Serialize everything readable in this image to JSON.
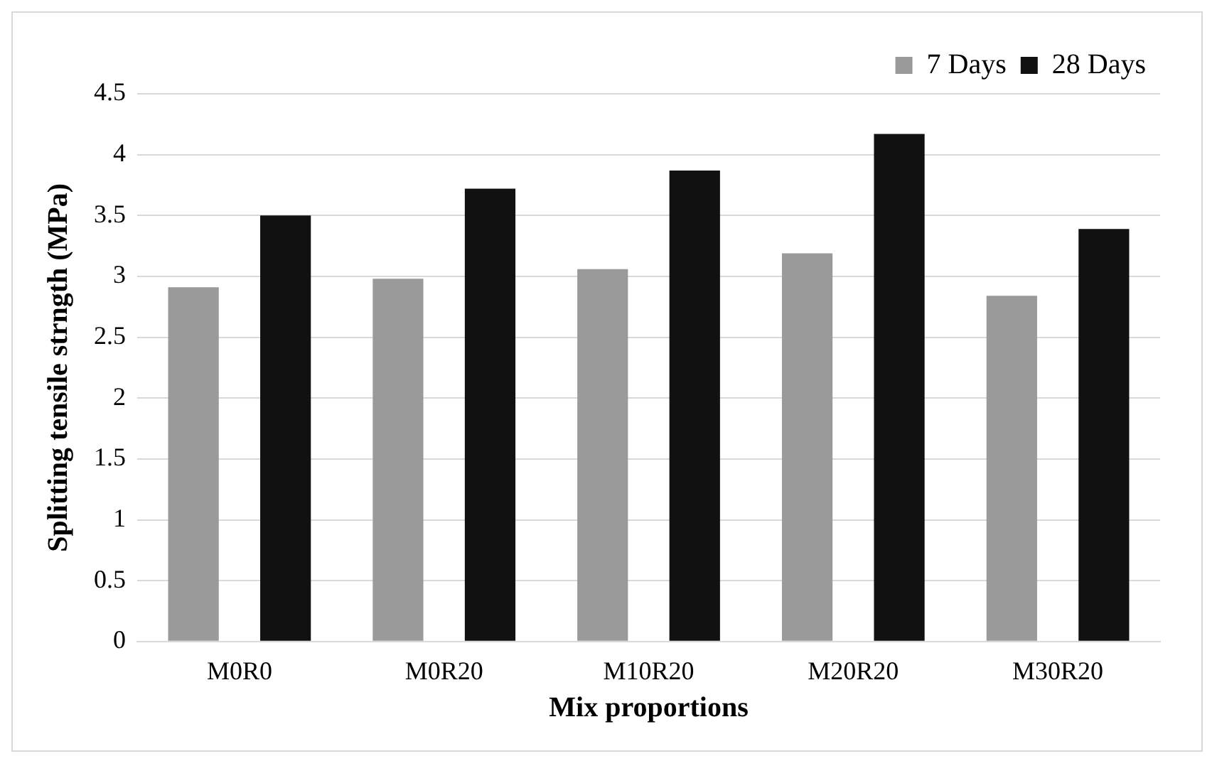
{
  "chart_data": {
    "type": "bar",
    "xlabel": "Mix proportions",
    "ylabel": "Splitting tensile strngth (MPa)",
    "categories": [
      "M0R0",
      "M0R20",
      "M10R20",
      "M20R20",
      "M30R20"
    ],
    "series": [
      {
        "name": "7 Days",
        "color": "#9a9a9a",
        "values": [
          2.91,
          2.98,
          3.06,
          3.19,
          2.84
        ]
      },
      {
        "name": "28 Days",
        "color": "#111111",
        "values": [
          3.5,
          3.72,
          3.87,
          4.17,
          3.39
        ]
      }
    ],
    "ylim": [
      0,
      4.5
    ],
    "yticks": [
      0,
      0.5,
      1,
      1.5,
      2,
      2.5,
      3,
      3.5,
      4,
      4.5
    ],
    "grid": "y",
    "legend": "top right"
  }
}
